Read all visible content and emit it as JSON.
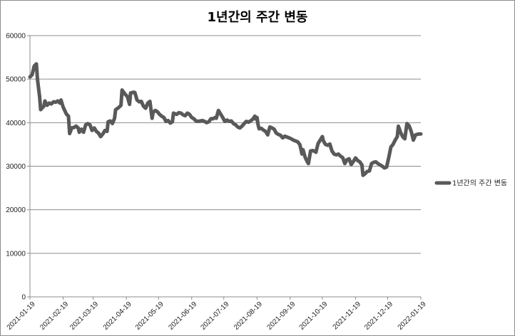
{
  "chart_data": {
    "type": "line",
    "title": "1년간의 주간 변동",
    "xlabel": "",
    "ylabel": "",
    "ylim": [
      0,
      60000
    ],
    "yticks": [
      0,
      10000,
      20000,
      30000,
      40000,
      50000,
      60000
    ],
    "xlim": [
      "2021-01-19",
      "2022-01-19"
    ],
    "xticks": [
      "2021-01-19",
      "2021-02-19",
      "2021-03-19",
      "2021-04-19",
      "2021-05-19",
      "2021-06-19",
      "2021-07-19",
      "2021-08-19",
      "2021-09-19",
      "2021-10-19",
      "2021-11-19",
      "2021-12-19",
      "2022-01-19"
    ],
    "grid": "horizontal",
    "legend": "right",
    "series": [
      {
        "name": "1년간의 주간 변동",
        "color": "#595959",
        "points": [
          [
            "2021-01-19",
            50500
          ],
          [
            "2021-01-21",
            51000
          ],
          [
            "2021-01-23",
            53000
          ],
          [
            "2021-01-25",
            53500
          ],
          [
            "2021-01-26",
            50000
          ],
          [
            "2021-01-28",
            46000
          ],
          [
            "2021-01-29",
            43000
          ],
          [
            "2021-02-01",
            43800
          ],
          [
            "2021-02-02",
            45000
          ],
          [
            "2021-02-04",
            44000
          ],
          [
            "2021-02-06",
            44500
          ],
          [
            "2021-02-08",
            44300
          ],
          [
            "2021-02-10",
            44800
          ],
          [
            "2021-02-12",
            44700
          ],
          [
            "2021-02-14",
            45000
          ],
          [
            "2021-02-16",
            44500
          ],
          [
            "2021-02-17",
            45200
          ],
          [
            "2021-02-19",
            43600
          ],
          [
            "2021-02-22",
            42000
          ],
          [
            "2021-02-24",
            41500
          ],
          [
            "2021-02-25",
            37500
          ],
          [
            "2021-02-27",
            38800
          ],
          [
            "2021-03-01",
            38900
          ],
          [
            "2021-03-03",
            39200
          ],
          [
            "2021-03-05",
            38800
          ],
          [
            "2021-03-06",
            37800
          ],
          [
            "2021-03-08",
            38500
          ],
          [
            "2021-03-10",
            37800
          ],
          [
            "2021-03-12",
            39500
          ],
          [
            "2021-03-14",
            39800
          ],
          [
            "2021-03-16",
            39500
          ],
          [
            "2021-03-18",
            38200
          ],
          [
            "2021-03-20",
            38800
          ],
          [
            "2021-03-22",
            38000
          ],
          [
            "2021-03-24",
            37600
          ],
          [
            "2021-03-26",
            36800
          ],
          [
            "2021-03-28",
            37400
          ],
          [
            "2021-03-30",
            38200
          ],
          [
            "2021-04-01",
            38000
          ],
          [
            "2021-04-02",
            40200
          ],
          [
            "2021-04-04",
            40400
          ],
          [
            "2021-04-06",
            39800
          ],
          [
            "2021-04-08",
            41000
          ],
          [
            "2021-04-09",
            43000
          ],
          [
            "2021-04-12",
            43500
          ],
          [
            "2021-04-14",
            44000
          ],
          [
            "2021-04-15",
            47500
          ],
          [
            "2021-04-18",
            46500
          ],
          [
            "2021-04-20",
            46000
          ],
          [
            "2021-04-22",
            44200
          ],
          [
            "2021-04-23",
            46800
          ],
          [
            "2021-04-26",
            47000
          ],
          [
            "2021-04-27",
            46900
          ],
          [
            "2021-04-29",
            45200
          ],
          [
            "2021-05-01",
            44800
          ],
          [
            "2021-05-03",
            44900
          ],
          [
            "2021-05-05",
            43800
          ],
          [
            "2021-05-07",
            43300
          ],
          [
            "2021-05-09",
            44500
          ],
          [
            "2021-05-11",
            44900
          ],
          [
            "2021-05-13",
            41000
          ],
          [
            "2021-05-14",
            42400
          ],
          [
            "2021-05-16",
            42800
          ],
          [
            "2021-05-18",
            42500
          ],
          [
            "2021-05-20",
            41900
          ],
          [
            "2021-05-22",
            41500
          ],
          [
            "2021-05-24",
            41200
          ],
          [
            "2021-05-26",
            40300
          ],
          [
            "2021-05-28",
            40500
          ],
          [
            "2021-05-30",
            39900
          ],
          [
            "2021-06-01",
            40200
          ],
          [
            "2021-06-02",
            42200
          ],
          [
            "2021-06-05",
            41900
          ],
          [
            "2021-06-07",
            42300
          ],
          [
            "2021-06-09",
            42200
          ],
          [
            "2021-06-11",
            41800
          ],
          [
            "2021-06-13",
            41600
          ],
          [
            "2021-06-15",
            42200
          ],
          [
            "2021-06-17",
            41900
          ],
          [
            "2021-06-19",
            41200
          ],
          [
            "2021-06-21",
            40900
          ],
          [
            "2021-06-23",
            40400
          ],
          [
            "2021-06-25",
            40300
          ],
          [
            "2021-06-27",
            40400
          ],
          [
            "2021-06-29",
            40500
          ],
          [
            "2021-07-01",
            40300
          ],
          [
            "2021-07-03",
            40000
          ],
          [
            "2021-07-05",
            40200
          ],
          [
            "2021-07-07",
            40900
          ],
          [
            "2021-07-09",
            40900
          ],
          [
            "2021-07-11",
            41200
          ],
          [
            "2021-07-12",
            41000
          ],
          [
            "2021-07-14",
            42800
          ],
          [
            "2021-07-16",
            42000
          ],
          [
            "2021-07-18",
            41200
          ],
          [
            "2021-07-20",
            40300
          ],
          [
            "2021-07-22",
            40600
          ],
          [
            "2021-07-24",
            40300
          ],
          [
            "2021-07-26",
            40400
          ],
          [
            "2021-07-28",
            39800
          ],
          [
            "2021-07-30",
            39500
          ],
          [
            "2021-08-01",
            39000
          ],
          [
            "2021-08-03",
            38800
          ],
          [
            "2021-08-05",
            39200
          ],
          [
            "2021-08-07",
            39800
          ],
          [
            "2021-08-09",
            40300
          ],
          [
            "2021-08-11",
            40100
          ],
          [
            "2021-08-13",
            40400
          ],
          [
            "2021-08-15",
            40800
          ],
          [
            "2021-08-17",
            41500
          ],
          [
            "2021-08-18",
            40800
          ],
          [
            "2021-08-19",
            41200
          ],
          [
            "2021-08-20",
            39500
          ],
          [
            "2021-08-21",
            38600
          ],
          [
            "2021-08-23",
            38700
          ],
          [
            "2021-08-25",
            38300
          ],
          [
            "2021-08-27",
            38000
          ],
          [
            "2021-08-29",
            37200
          ],
          [
            "2021-08-31",
            39000
          ],
          [
            "2021-09-02",
            38800
          ],
          [
            "2021-09-04",
            38500
          ],
          [
            "2021-09-06",
            37600
          ],
          [
            "2021-09-08",
            37300
          ],
          [
            "2021-09-10",
            37100
          ],
          [
            "2021-09-12",
            36500
          ],
          [
            "2021-09-14",
            36900
          ],
          [
            "2021-09-16",
            36700
          ],
          [
            "2021-09-18",
            36500
          ],
          [
            "2021-09-20",
            36300
          ],
          [
            "2021-09-22",
            36000
          ],
          [
            "2021-09-24",
            35800
          ],
          [
            "2021-09-26",
            35600
          ],
          [
            "2021-09-28",
            35000
          ],
          [
            "2021-09-29",
            34000
          ],
          [
            "2021-09-30",
            32800
          ],
          [
            "2021-10-01",
            33800
          ],
          [
            "2021-10-03",
            32000
          ],
          [
            "2021-10-05",
            31000
          ],
          [
            "2021-10-06",
            30600
          ],
          [
            "2021-10-08",
            33500
          ],
          [
            "2021-10-10",
            33600
          ],
          [
            "2021-10-12",
            33400
          ],
          [
            "2021-10-13",
            33200
          ],
          [
            "2021-10-15",
            35200
          ],
          [
            "2021-10-17",
            36000
          ],
          [
            "2021-10-19",
            36800
          ],
          [
            "2021-10-20",
            35800
          ],
          [
            "2021-10-22",
            35000
          ],
          [
            "2021-10-24",
            34800
          ],
          [
            "2021-10-26",
            35100
          ],
          [
            "2021-10-28",
            33500
          ],
          [
            "2021-10-30",
            32800
          ],
          [
            "2021-11-01",
            32600
          ],
          [
            "2021-11-03",
            32800
          ],
          [
            "2021-11-05",
            32300
          ],
          [
            "2021-11-07",
            32000
          ],
          [
            "2021-11-09",
            30600
          ],
          [
            "2021-11-11",
            31500
          ],
          [
            "2021-11-13",
            31700
          ],
          [
            "2021-11-15",
            30400
          ],
          [
            "2021-11-17",
            31100
          ],
          [
            "2021-11-19",
            31900
          ],
          [
            "2021-11-21",
            31300
          ],
          [
            "2021-11-23",
            31000
          ],
          [
            "2021-11-25",
            30300
          ],
          [
            "2021-11-26",
            27900
          ],
          [
            "2021-11-28",
            28300
          ],
          [
            "2021-11-30",
            28800
          ],
          [
            "2021-12-02",
            28900
          ],
          [
            "2021-12-04",
            30600
          ],
          [
            "2021-12-06",
            30900
          ],
          [
            "2021-12-08",
            31000
          ],
          [
            "2021-12-10",
            30600
          ],
          [
            "2021-12-12",
            30300
          ],
          [
            "2021-12-14",
            30000
          ],
          [
            "2021-12-16",
            29600
          ],
          [
            "2021-12-18",
            29800
          ],
          [
            "2021-12-20",
            32000
          ],
          [
            "2021-12-22",
            34400
          ],
          [
            "2021-12-24",
            35000
          ],
          [
            "2021-12-26",
            36000
          ],
          [
            "2021-12-28",
            36800
          ],
          [
            "2021-12-29",
            39200
          ],
          [
            "2021-12-31",
            37800
          ],
          [
            "2022-01-02",
            36800
          ],
          [
            "2022-01-04",
            36300
          ],
          [
            "2022-01-06",
            39800
          ],
          [
            "2022-01-08",
            39300
          ],
          [
            "2022-01-10",
            38000
          ],
          [
            "2022-01-12",
            36000
          ],
          [
            "2022-01-14",
            37200
          ],
          [
            "2022-01-17",
            37400
          ],
          [
            "2022-01-19",
            37400
          ]
        ]
      }
    ]
  }
}
